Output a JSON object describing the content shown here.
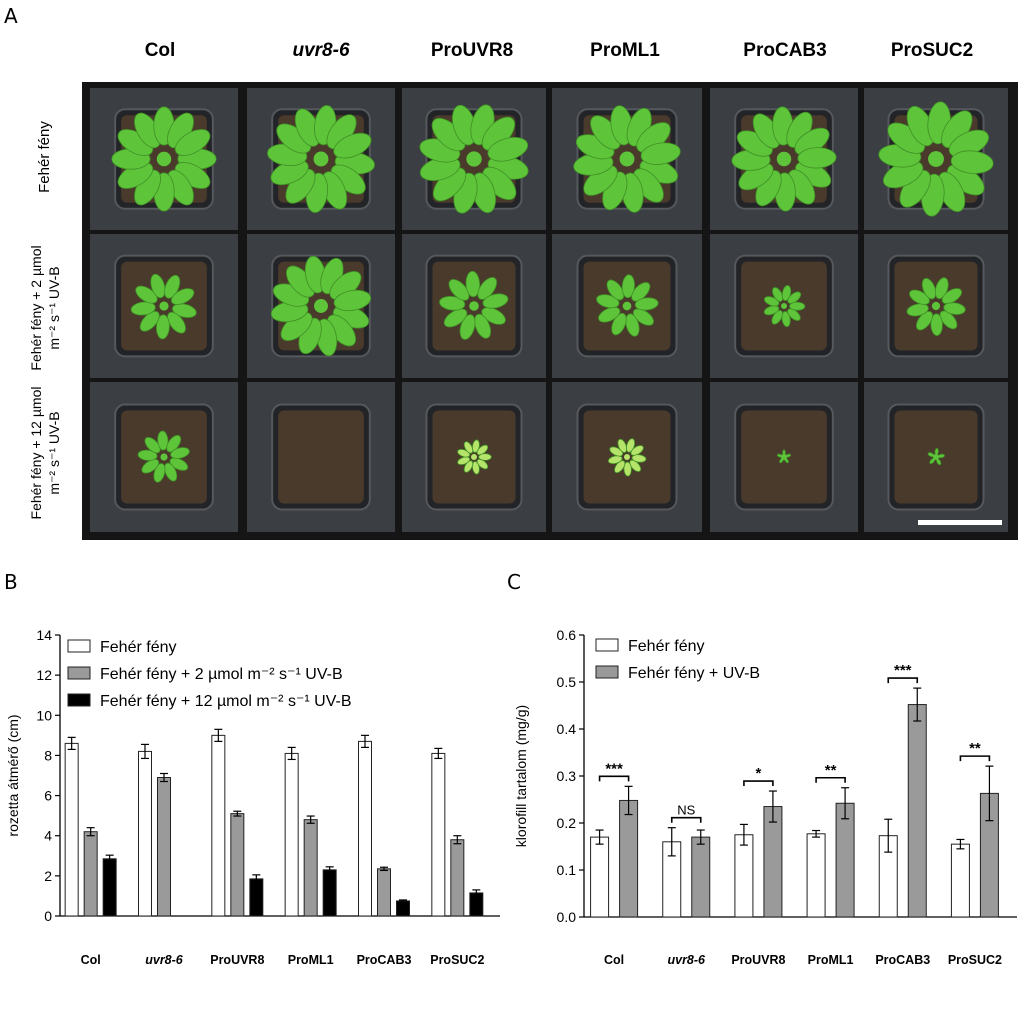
{
  "panel_labels": {
    "a": "A",
    "b": "B",
    "c": "C"
  },
  "genotypes": [
    {
      "label": "Col",
      "italic": false
    },
    {
      "label": "uvr8-6",
      "italic": true
    },
    {
      "label": "ProUVR8",
      "italic": false
    },
    {
      "label": "ProML1",
      "italic": false
    },
    {
      "label": "ProCAB3",
      "italic": false
    },
    {
      "label": "ProSUC2",
      "italic": false
    }
  ],
  "photo_rows": [
    "Fehér fény",
    "Fehér fény + 2 µmol m⁻² s⁻¹ UV-B",
    "Fehér fény + 12 µmol m⁻² s⁻¹ UV-B"
  ],
  "colors": {
    "white_bar": "#ffffff",
    "gray_bar": "#9a9a9a",
    "black_bar": "#000000",
    "leaf": "#5ec43a",
    "soil": "#4a3a2c",
    "pot": "#2e3034"
  },
  "chart_data": [
    {
      "type": "bar",
      "panel": "B",
      "categories": [
        "Col",
        "uvr8-6",
        "ProUVR8",
        "ProML1",
        "ProCAB3",
        "ProSUC2"
      ],
      "ylabel": "rozetta átmérő (cm)",
      "xlabel": "",
      "ylim": [
        0,
        14
      ],
      "yticks": [
        "0",
        "2",
        "4",
        "6",
        "8",
        "10",
        "12",
        "14"
      ],
      "legend_position": "top-left",
      "series": [
        {
          "name": "Fehér fény",
          "values": [
            8.6,
            8.2,
            9.0,
            8.1,
            8.7,
            8.1
          ],
          "errors": [
            0.3,
            0.35,
            0.3,
            0.3,
            0.3,
            0.25
          ],
          "color": "#ffffff"
        },
        {
          "name": "Fehér fény + 2 µmol m⁻² s⁻¹ UV-B",
          "values": [
            4.2,
            6.9,
            5.1,
            4.8,
            2.35,
            3.8
          ],
          "errors": [
            0.2,
            0.2,
            0.12,
            0.18,
            0.08,
            0.2
          ],
          "color": "#9a9a9a"
        },
        {
          "name": "Fehér fény + 12 µmol m⁻² s⁻¹ UV-B",
          "values": [
            2.85,
            0,
            1.85,
            2.3,
            0.75,
            1.15
          ],
          "errors": [
            0.18,
            0,
            0.2,
            0.15,
            0.05,
            0.15
          ],
          "color": "#000000"
        }
      ]
    },
    {
      "type": "bar",
      "panel": "C",
      "categories": [
        "Col",
        "uvr8-6",
        "ProUVR8",
        "ProML1",
        "ProCAB3",
        "ProSUC2"
      ],
      "ylabel": "klorofill tartalom (mg/g)",
      "xlabel": "",
      "ylim": [
        0,
        0.6
      ],
      "yticks": [
        "0.0",
        "0.1",
        "0.2",
        "0.3",
        "0.4",
        "0.5",
        "0.6"
      ],
      "legend_position": "top-left",
      "series": [
        {
          "name": "Fehér fény",
          "values": [
            0.17,
            0.16,
            0.175,
            0.177,
            0.173,
            0.155
          ],
          "errors": [
            0.015,
            0.03,
            0.022,
            0.007,
            0.035,
            0.01
          ],
          "color": "#ffffff"
        },
        {
          "name": "Fehér fény + UV-B",
          "values": [
            0.248,
            0.17,
            0.235,
            0.242,
            0.452,
            0.263
          ],
          "errors": [
            0.03,
            0.015,
            0.033,
            0.033,
            0.035,
            0.058
          ],
          "color": "#9a9a9a"
        }
      ],
      "significance": [
        "***",
        "NS",
        "*",
        "**",
        "***",
        "**"
      ]
    }
  ]
}
